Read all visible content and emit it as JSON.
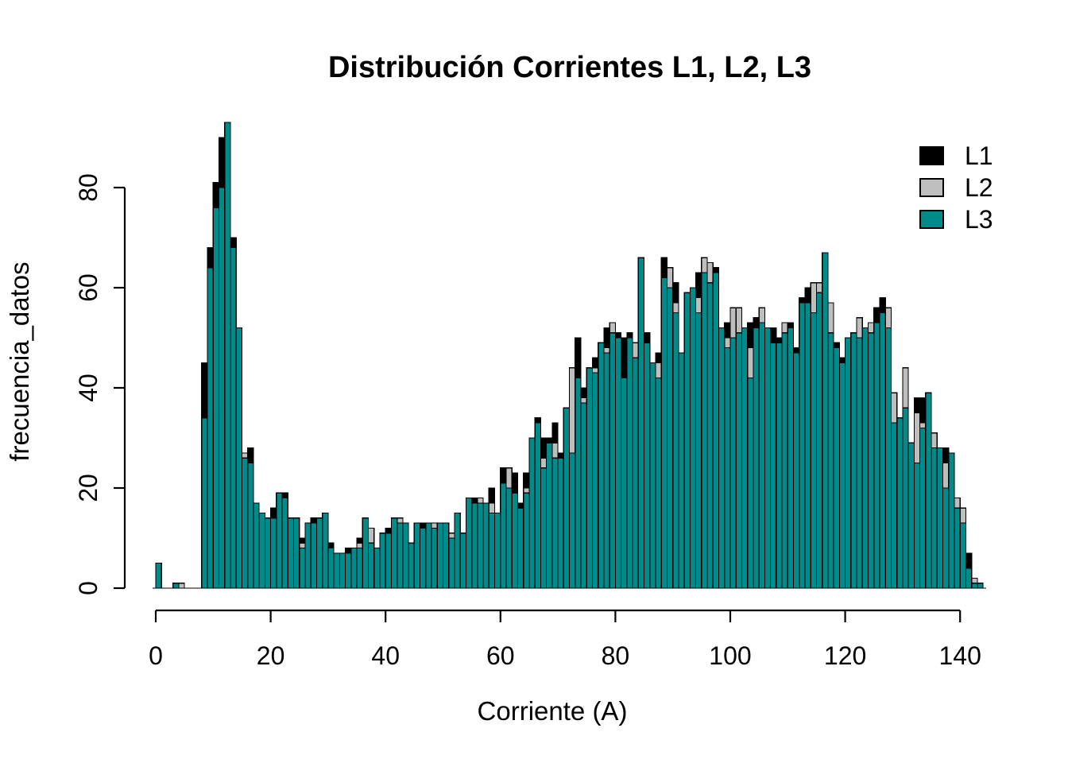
{
  "page": {
    "background": "#ffffff",
    "text_color": "#000000"
  },
  "chart_data": {
    "type": "bar",
    "subtype": "overlaid-histogram",
    "title": "Distribución Corrientes L1, L2, L3",
    "xlabel": "Corriente (A)",
    "ylabel": "frecuencia_datos",
    "x_ticks": [
      0,
      20,
      40,
      60,
      80,
      100,
      120,
      140
    ],
    "y_ticks": [
      0,
      20,
      40,
      60,
      80
    ],
    "xlim": [
      0,
      144
    ],
    "ylim": [
      0,
      93
    ],
    "bin_start": 0,
    "bin_width": 1,
    "grid": "off",
    "bar_border_color": "#000000",
    "legend_position": "top-right",
    "draw_order": [
      "L1",
      "L2",
      "L3"
    ],
    "series": [
      {
        "name": "L1",
        "color": "#000000",
        "values": [
          5,
          0,
          0,
          1,
          1,
          0,
          0,
          0,
          45,
          68,
          81,
          90,
          88,
          70,
          50,
          26,
          28,
          15,
          15,
          13,
          16,
          19,
          19,
          14,
          14,
          10,
          13,
          14,
          13,
          15,
          9,
          7,
          7,
          8,
          8,
          10,
          11,
          9,
          8,
          11,
          12,
          14,
          13,
          13,
          9,
          12,
          13,
          13,
          8,
          13,
          13,
          10,
          14,
          11,
          18,
          18,
          17,
          17,
          20,
          15,
          24,
          20,
          23,
          17,
          23,
          30,
          34,
          30,
          30,
          33,
          27,
          36,
          34,
          50,
          40,
          44,
          46,
          49,
          52,
          50,
          51,
          50,
          51,
          45,
          58,
          51,
          45,
          47,
          66,
          60,
          61,
          47,
          59,
          60,
          63,
          62,
          60,
          64,
          52,
          53,
          50,
          51,
          52,
          53,
          54,
          54,
          52,
          52,
          50,
          50,
          53,
          48,
          58,
          60,
          60,
          59,
          62,
          51,
          49,
          46,
          50,
          51,
          50,
          52,
          51,
          56,
          58,
          52,
          33,
          34,
          35,
          29,
          38,
          38,
          39,
          28,
          28,
          28,
          27,
          16,
          13,
          7,
          1,
          1
        ]
      },
      {
        "name": "L2",
        "color": "#BEBEBE",
        "values": [
          4,
          0,
          0,
          1,
          1,
          0,
          0,
          0,
          33,
          62,
          74,
          79,
          86,
          66,
          48,
          27,
          24,
          14,
          15,
          13,
          13,
          17,
          18,
          13,
          13,
          9,
          12,
          13,
          13,
          14,
          8,
          7,
          6,
          7,
          7,
          9,
          10,
          12,
          7,
          10,
          11,
          13,
          14,
          12,
          8,
          11,
          12,
          12,
          13,
          12,
          12,
          11,
          13,
          10,
          17,
          17,
          18,
          16,
          17,
          14,
          20,
          24,
          19,
          16,
          20,
          28,
          33,
          26,
          28,
          29,
          25,
          34,
          44,
          42,
          38,
          42,
          44,
          47,
          48,
          53,
          49,
          41,
          48,
          49,
          56,
          47,
          43,
          45,
          60,
          64,
          57,
          45,
          55,
          57,
          58,
          66,
          65,
          62,
          50,
          50,
          56,
          56,
          50,
          48,
          51,
          56,
          50,
          49,
          48,
          53,
          50,
          45,
          55,
          56,
          61,
          61,
          60,
          57,
          46,
          44,
          48,
          49,
          54,
          50,
          53,
          52,
          54,
          56,
          39,
          32,
          44,
          28,
          35,
          33,
          37,
          31,
          26,
          25,
          26,
          18,
          16,
          4,
          2,
          1
        ]
      },
      {
        "name": "L3",
        "color": "#008B8B",
        "values": [
          5,
          0,
          0,
          1,
          0,
          0,
          0,
          0,
          34,
          64,
          76,
          80,
          93,
          68,
          52,
          26,
          25,
          17,
          15,
          14,
          14,
          19,
          18,
          14,
          14,
          8,
          13,
          13,
          14,
          15,
          8,
          7,
          7,
          7,
          8,
          8,
          14,
          9,
          8,
          11,
          11,
          14,
          13,
          13,
          9,
          13,
          12,
          13,
          12,
          13,
          13,
          10,
          15,
          11,
          18,
          17,
          17,
          17,
          15,
          15,
          21,
          20,
          19,
          16,
          19,
          30,
          33,
          24,
          29,
          26,
          26,
          36,
          27,
          42,
          37,
          44,
          43,
          49,
          47,
          51,
          50,
          42,
          50,
          46,
          66,
          49,
          45,
          42,
          62,
          60,
          55,
          47,
          59,
          60,
          55,
          63,
          61,
          63,
          52,
          48,
          50,
          51,
          52,
          42,
          52,
          53,
          52,
          49,
          49,
          51,
          52,
          47,
          57,
          57,
          55,
          59,
          67,
          51,
          48,
          45,
          50,
          51,
          50,
          52,
          51,
          53,
          55,
          52,
          33,
          34,
          36,
          29,
          25,
          32,
          39,
          28,
          28,
          20,
          27,
          16,
          13,
          4,
          1,
          1
        ]
      }
    ]
  }
}
